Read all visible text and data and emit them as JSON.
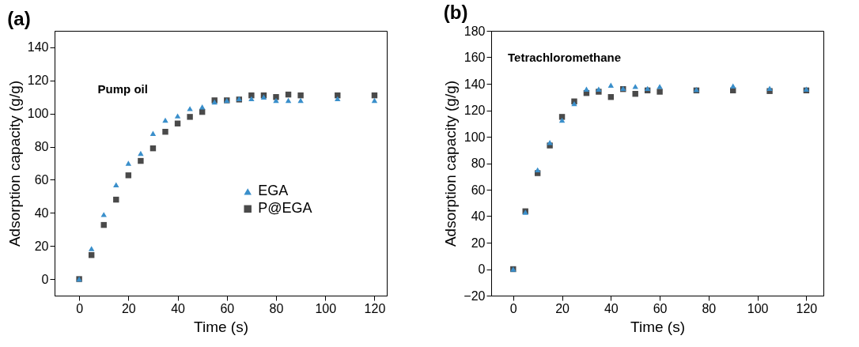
{
  "chart_data": [
    {
      "type": "scatter",
      "title": "(a)",
      "xlabel": "Time (s)",
      "ylabel": "Adsorption capacity (g/g)",
      "annotations": [
        "Pump oil"
      ],
      "xlim": [
        -10,
        125
      ],
      "ylim": [
        -10,
        150
      ],
      "xticks": [
        0,
        20,
        40,
        60,
        80,
        100,
        120
      ],
      "yticks": [
        0,
        20,
        40,
        60,
        80,
        100,
        120,
        140
      ],
      "legend": "right",
      "x": [
        0,
        5,
        10,
        15,
        20,
        25,
        30,
        35,
        40,
        45,
        50,
        55,
        60,
        65,
        70,
        75,
        80,
        85,
        90,
        105,
        120
      ],
      "series": [
        {
          "name": "EGA",
          "color": "#3a8fcb",
          "marker": "triangle",
          "values": [
            0,
            18.4,
            39,
            57,
            70,
            76,
            88,
            96,
            98.6,
            103,
            104,
            107,
            108,
            109,
            109,
            110,
            108,
            108,
            108,
            109,
            108
          ]
        },
        {
          "name": "P@EGA",
          "color": "#4a4a4a",
          "marker": "square",
          "values": [
            0,
            14.5,
            32.7,
            48,
            62.7,
            71.4,
            79,
            89,
            94,
            98,
            101,
            108,
            108,
            108.5,
            111,
            111,
            110,
            111.5,
            111,
            111,
            111
          ]
        }
      ]
    },
    {
      "type": "scatter",
      "title": "(b)",
      "xlabel": "Time (s)",
      "ylabel": "Adsorption capacity (g/g)",
      "annotations": [
        "Tetrachloromethane"
      ],
      "xlim": [
        -9,
        127
      ],
      "ylim": [
        -20,
        180
      ],
      "xticks": [
        0,
        20,
        40,
        60,
        80,
        100,
        120
      ],
      "yticks": [
        -20,
        0,
        20,
        40,
        60,
        80,
        100,
        120,
        140,
        160,
        180
      ],
      "legend": "right",
      "x": [
        0,
        5,
        10,
        15,
        20,
        25,
        30,
        35,
        40,
        45,
        50,
        55,
        60,
        75,
        90,
        105,
        120
      ],
      "series": [
        {
          "name": "EGA",
          "color": "#3a8fcb",
          "marker": "triangle",
          "values": [
            0,
            43,
            75,
            95.7,
            112.5,
            125,
            136,
            136,
            139,
            136.5,
            138,
            136.5,
            138,
            135.7,
            138.4,
            136.6,
            136
          ]
        },
        {
          "name": "P@EGA",
          "color": "#4a4a4a",
          "marker": "square",
          "values": [
            0,
            43.7,
            72.5,
            93.4,
            115,
            126.7,
            133,
            134,
            130,
            136,
            132.4,
            135,
            134,
            135,
            135,
            134.5,
            135
          ]
        }
      ]
    }
  ]
}
